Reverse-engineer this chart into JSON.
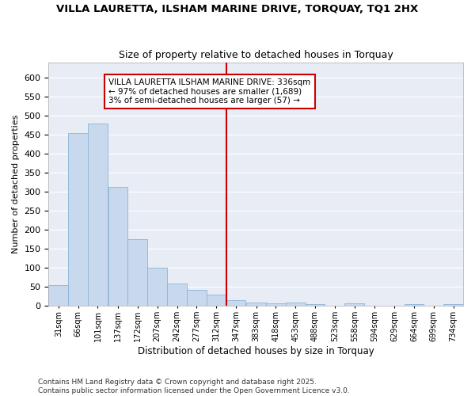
{
  "title": "VILLA LAURETTA, ILSHAM MARINE DRIVE, TORQUAY, TQ1 2HX",
  "subtitle": "Size of property relative to detached houses in Torquay",
  "xlabel": "Distribution of detached houses by size in Torquay",
  "ylabel": "Number of detached properties",
  "bar_color": "#c8d9ee",
  "bar_edge_color": "#8ab4d8",
  "background_color": "#ffffff",
  "axes_bg_color": "#e8ecf5",
  "grid_color": "#ffffff",
  "vline_x": 347,
  "vline_color": "#cc0000",
  "annotation_text": "VILLA LAURETTA ILSHAM MARINE DRIVE: 336sqm\n← 97% of detached houses are smaller (1,689)\n3% of semi-detached houses are larger (57) →",
  "annotation_box_color": "#ffffff",
  "annotation_box_edge": "#cc0000",
  "bins": [
    31,
    66,
    101,
    137,
    172,
    207,
    242,
    277,
    312,
    347,
    383,
    418,
    453,
    488,
    523,
    558,
    594,
    629,
    664,
    699,
    734
  ],
  "bin_width": 35,
  "values": [
    55,
    455,
    480,
    312,
    175,
    100,
    58,
    42,
    30,
    15,
    10,
    8,
    10,
    6,
    0,
    8,
    0,
    0,
    4,
    0,
    4
  ],
  "footnote": "Contains HM Land Registry data © Crown copyright and database right 2025.\nContains public sector information licensed under the Open Government Licence v3.0.",
  "ylim": [
    0,
    640
  ],
  "yticks": [
    0,
    50,
    100,
    150,
    200,
    250,
    300,
    350,
    400,
    450,
    500,
    550,
    600
  ],
  "figsize": [
    6.0,
    5.0
  ],
  "dpi": 100
}
